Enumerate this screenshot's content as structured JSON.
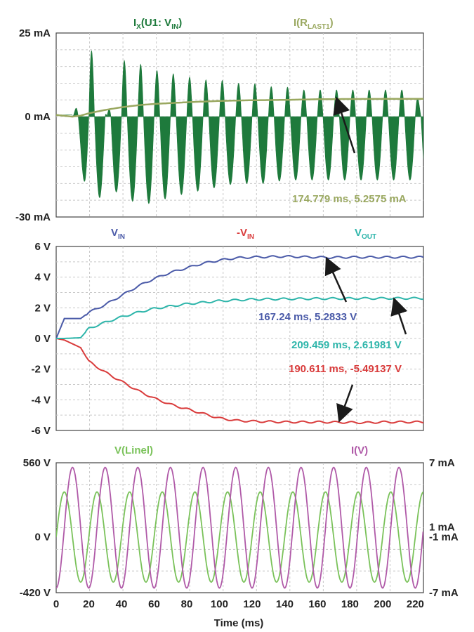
{
  "chart_data": [
    {
      "type": "line",
      "title_parts": {
        "main": "I",
        "sub1": "X",
        "mid": "(U1: V",
        "sub2": "IN",
        "end": ")"
      },
      "title2_parts": {
        "main": "I(R",
        "sub": "LAST1",
        "end": ")"
      },
      "x_range": [
        0,
        225
      ],
      "ylim": [
        -30,
        25
      ],
      "y_ticks": [
        {
          "value": 25,
          "label": "25 mA"
        },
        {
          "value": 0,
          "label": "0 mA"
        },
        {
          "value": -30,
          "label": "-30 mA"
        }
      ],
      "series": [
        {
          "name": "IX(U1: VIN)",
          "color": "#1e7a3c",
          "description_points": {
            "x": [
              0,
              10,
              18,
              20,
              23,
              27,
              31,
              40,
              50,
              60,
              70,
              80,
              90,
              100,
              110,
              120,
              130,
              140,
              150,
              160,
              170,
              180,
              190,
              200,
              210,
              220,
              225
            ],
            "envelope_top": [
              1,
              0,
              10,
              22,
              18,
              14,
              0,
              17,
              16,
              14,
              13,
              12,
              11,
              11,
              10,
              10,
              9,
              9,
              8,
              8,
              8,
              8,
              8,
              8,
              8,
              8,
              0
            ],
            "envelope_bottom": [
              1,
              0,
              -22,
              -25,
              -27,
              -24,
              -20,
              -24,
              -26,
              -26,
              -24,
              -23,
              -22,
              -21,
              -20,
              -20,
              -20,
              -19,
              -19,
              -19,
              -19,
              -19,
              -19,
              -19,
              -19,
              -19,
              -19
            ]
          }
        },
        {
          "name": "I(RLAST1)",
          "color": "#9aa860",
          "x": [
            0,
            10,
            15,
            20,
            30,
            40,
            50,
            60,
            80,
            100,
            120,
            140,
            160,
            174.779,
            200,
            225
          ],
          "y": [
            0.5,
            0,
            0.3,
            1.0,
            2.0,
            2.8,
            3.4,
            3.8,
            4.3,
            4.7,
            4.9,
            5.0,
            5.2,
            5.2575,
            5.3,
            5.3
          ]
        }
      ],
      "annotation": {
        "text": "174.779 ms, 5.2575 mA",
        "color": "#9aa860",
        "point": [
          174.779,
          5.2575
        ]
      }
    },
    {
      "type": "line",
      "ylim": [
        -6,
        6
      ],
      "y_ticks": [
        {
          "value": 6,
          "label": "6 V"
        },
        {
          "value": 4,
          "label": "4 V"
        },
        {
          "value": 2,
          "label": "2 V"
        },
        {
          "value": 0,
          "label": "0 V"
        },
        {
          "value": -2,
          "label": "-2 V"
        },
        {
          "value": -4,
          "label": "-4 V"
        },
        {
          "value": -6,
          "label": "-6 V"
        }
      ],
      "legend": [
        {
          "main": "V",
          "sub": "IN",
          "color": "#4a5aa8"
        },
        {
          "main": "-V",
          "sub": "IN",
          "color": "#d93b3b"
        },
        {
          "main": "V",
          "sub": "OUT",
          "color": "#2db5aa"
        }
      ],
      "series": [
        {
          "name": "VIN",
          "color": "#4a5aa8",
          "x": [
            0,
            5,
            15,
            20,
            30,
            40,
            50,
            60,
            70,
            80,
            90,
            100,
            110,
            120,
            140,
            160,
            167.24,
            180,
            200,
            225
          ],
          "y": [
            0,
            1.3,
            1.3,
            1.7,
            2.2,
            2.8,
            3.4,
            3.9,
            4.3,
            4.6,
            4.9,
            5.1,
            5.25,
            5.3,
            5.35,
            5.3,
            5.2833,
            5.3,
            5.3,
            5.3
          ]
        },
        {
          "name": "-VIN",
          "color": "#d93b3b",
          "x": [
            0,
            5,
            15,
            20,
            30,
            40,
            50,
            60,
            70,
            80,
            90,
            100,
            110,
            120,
            140,
            160,
            190.611,
            200,
            225
          ],
          "y": [
            0,
            -0.1,
            -0.6,
            -1.5,
            -2.2,
            -2.8,
            -3.4,
            -3.9,
            -4.3,
            -4.6,
            -4.9,
            -5.2,
            -5.35,
            -5.4,
            -5.45,
            -5.45,
            -5.49137,
            -5.45,
            -5.45
          ]
        },
        {
          "name": "VOUT",
          "color": "#2db5aa",
          "x": [
            0,
            5,
            15,
            20,
            30,
            40,
            50,
            60,
            70,
            80,
            90,
            100,
            110,
            120,
            140,
            160,
            180,
            209.459,
            225
          ],
          "y": [
            0,
            0,
            0.05,
            0.65,
            1.05,
            1.4,
            1.7,
            1.95,
            2.1,
            2.25,
            2.35,
            2.45,
            2.5,
            2.55,
            2.58,
            2.6,
            2.61,
            2.61981,
            2.62
          ]
        }
      ],
      "annotations": [
        {
          "text": "167.24 ms, 5.2833 V",
          "color": "#4a5aa8",
          "point": [
            167.24,
            5.2833
          ]
        },
        {
          "text": "209.459 ms, 2.61981 V",
          "color": "#2db5aa",
          "point": [
            209.459,
            2.61981
          ]
        },
        {
          "text": "190.611 ms, -5.49137 V",
          "color": "#d93b3b",
          "point": [
            190.611,
            -5.49137
          ]
        }
      ]
    },
    {
      "type": "line",
      "xlabel": "Time (ms)",
      "x_ticks": [
        0,
        20,
        40,
        60,
        80,
        100,
        120,
        140,
        160,
        180,
        200,
        220
      ],
      "x_range": [
        0,
        225
      ],
      "ylim_left": [
        -420,
        560
      ],
      "ylim_right": [
        -7,
        7
      ],
      "left_ticks": [
        {
          "value": 560,
          "label": "560 V"
        },
        {
          "value": 0,
          "label": "0 V"
        },
        {
          "value": -420,
          "label": "-420 V"
        }
      ],
      "right_ticks": [
        {
          "label": "7 mA",
          "level": 560
        },
        {
          "label": "1 mA",
          "level": 75
        },
        {
          "label": "-1 mA",
          "level": 0
        },
        {
          "label": "-7 mA",
          "level": -420
        }
      ],
      "legend": [
        {
          "name": "V(Linel)",
          "color": "#7ac25a"
        },
        {
          "name": "I(V)",
          "color": "#b05aa8"
        }
      ],
      "series": [
        {
          "name": "V(Linel)",
          "color": "#7ac25a",
          "period_ms": 20,
          "amplitude_V": 340,
          "offset_V": 0,
          "phase_deg": 0
        },
        {
          "name": "I(V)",
          "color": "#b05aa8",
          "period_ms": 20,
          "amplitude_mA": 6.5,
          "phase_deg": -90
        }
      ]
    }
  ]
}
